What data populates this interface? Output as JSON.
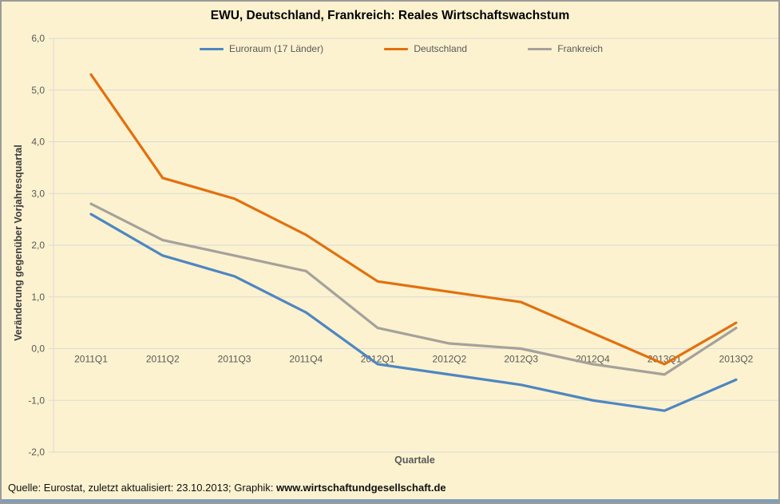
{
  "chart": {
    "title": "EWU, Deutschland, Frankreich: Reales Wirtschaftswachstum",
    "y_axis_title": "Veränderung gegenüber Vorjahresquartal",
    "x_axis_title": "Quartale",
    "footer": {
      "source_text": "Quelle: Eurostat, zuletzt aktualisiert: 23.10.2013;  Graphik: ",
      "site": "www.wirtschaftundgesellschaft.de"
    },
    "colors": {
      "background": "#FCF2CF",
      "grid": "#D9D9D9",
      "tick_text": "#595959",
      "bottom_bar": "#7F9DB9"
    }
  },
  "chart_data": {
    "type": "line",
    "title": "EWU, Deutschland, Frankreich: Reales Wirtschaftswachstum",
    "xlabel": "Quartale",
    "ylabel": "Veränderung gegenüber Vorjahresquartal",
    "categories": [
      "2011Q1",
      "2011Q2",
      "2011Q3",
      "2011Q4",
      "2012Q1",
      "2012Q2",
      "2012Q3",
      "2012Q4",
      "2013Q1",
      "2013Q2"
    ],
    "series": [
      {
        "name": "Euroraum (17 Länder)",
        "color": "#4E86C2",
        "values": [
          2.6,
          1.8,
          1.4,
          0.7,
          -0.3,
          -0.5,
          -0.7,
          -1.0,
          -1.2,
          -0.6
        ]
      },
      {
        "name": "Deutschland",
        "color": "#E2700F",
        "values": [
          5.3,
          3.3,
          2.9,
          2.2,
          1.3,
          1.1,
          0.9,
          0.3,
          -0.3,
          0.5
        ]
      },
      {
        "name": "Frankreich",
        "color": "#A5A19B",
        "values": [
          2.8,
          2.1,
          1.8,
          1.5,
          0.4,
          0.1,
          0.0,
          -0.3,
          -0.5,
          0.4
        ]
      }
    ],
    "ylim": [
      -2,
      6
    ],
    "yticks": [
      {
        "label": "6,0",
        "value": 6
      },
      {
        "label": "5,0",
        "value": 5
      },
      {
        "label": "4,0",
        "value": 4
      },
      {
        "label": "3,0",
        "value": 3
      },
      {
        "label": "2,0",
        "value": 2
      },
      {
        "label": "1,0",
        "value": 1
      },
      {
        "label": "0,0",
        "value": 0
      },
      {
        "label": "-1,0",
        "value": -1
      },
      {
        "label": "-2,0",
        "value": -2
      }
    ],
    "grid": true,
    "legend_position": "top"
  }
}
